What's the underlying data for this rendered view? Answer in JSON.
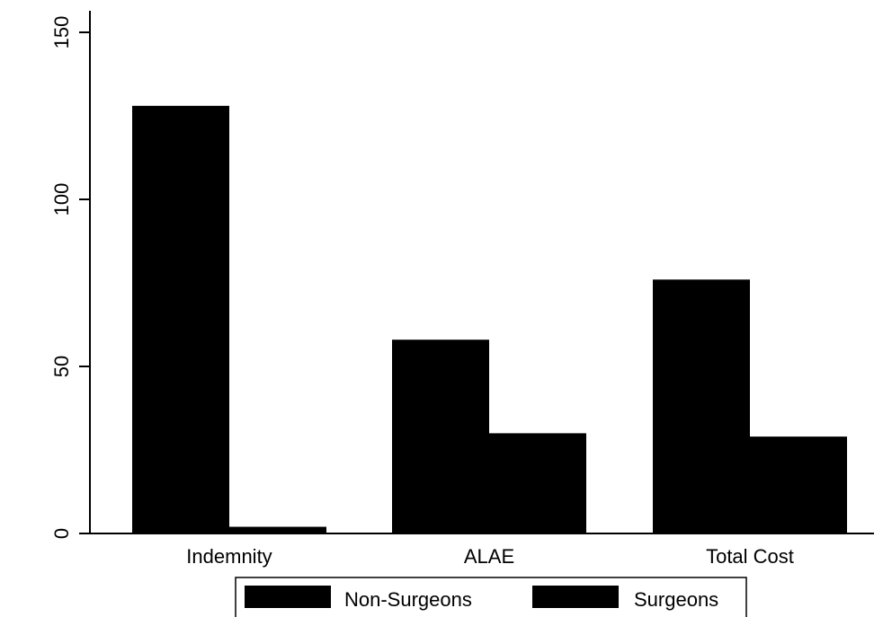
{
  "chart_data": {
    "type": "bar",
    "categories": [
      "Indemnity",
      "ALAE",
      "Total Cost"
    ],
    "series": [
      {
        "name": "Non-Surgeons",
        "values": [
          128,
          58,
          76
        ],
        "color": "#000000"
      },
      {
        "name": "Surgeons",
        "values": [
          2,
          30,
          29
        ],
        "color": "#000000"
      }
    ],
    "ylim": [
      0,
      150
    ],
    "yticks": [
      0,
      50,
      100,
      150
    ],
    "ytick_labels": [
      "0",
      "50",
      "100",
      "150"
    ],
    "grid": false,
    "legend_position": "bottom"
  }
}
